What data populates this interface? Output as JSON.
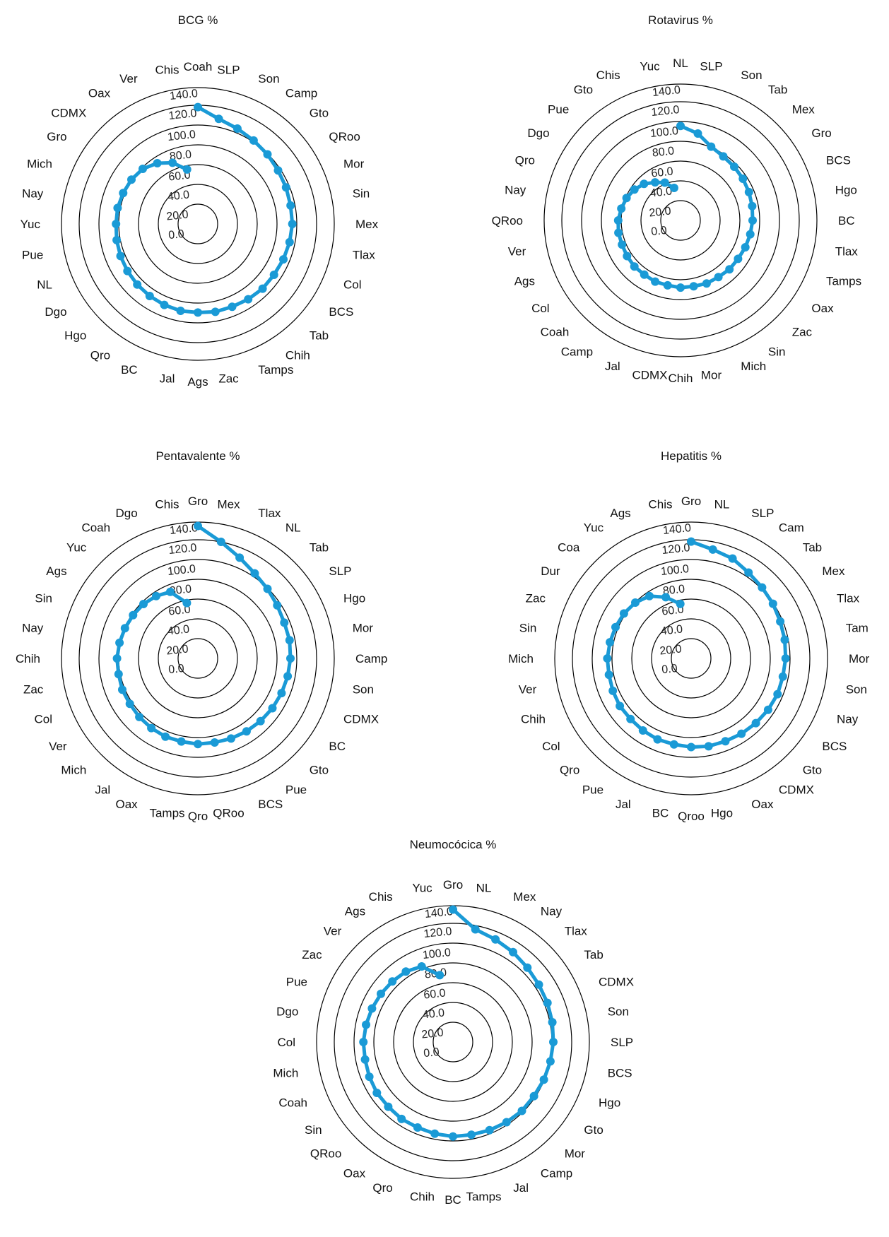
{
  "colors": {
    "series": "#1a9ad6",
    "axis": "#000000"
  },
  "chart_data": [
    {
      "type": "radar",
      "title": "BCG %",
      "rlim": [
        0,
        140
      ],
      "ticks": [
        "0.0",
        "20.0",
        "40.0",
        "60.0",
        "80.0",
        "100.0",
        "120.0",
        "140.0"
      ],
      "categories": [
        "Coah",
        "SLP",
        "Son",
        "Camp",
        "Gto",
        "QRoo",
        "Mor",
        "Sin",
        "Mex",
        "Tlax",
        "Col",
        "BCS",
        "Tab",
        "Chih",
        "Tamps",
        "Zac",
        "Ags",
        "Jal",
        "BC",
        "Qro",
        "Hgo",
        "Dgo",
        "NL",
        "Pue",
        "Yuc",
        "Nay",
        "Mich",
        "Gro",
        "CDMX",
        "Oax",
        "Ver",
        "Chis"
      ],
      "values": [
        120,
        110,
        106,
        103,
        101,
        99,
        98,
        97,
        97,
        96,
        95,
        94,
        94,
        93,
        92,
        92,
        91,
        91,
        90,
        89,
        88,
        87,
        86,
        85,
        84,
        84,
        83,
        82,
        80,
        75,
        68,
        57
      ]
    },
    {
      "type": "radar",
      "title": "Rotavirus %",
      "rlim": [
        0,
        140
      ],
      "ticks": [
        "0.0",
        "20.0",
        "40.0",
        "60.0",
        "80.0",
        "100.0",
        "120.0",
        "140.0"
      ],
      "categories": [
        "NL",
        "SLP",
        "Son",
        "Tab",
        "Mex",
        "Gro",
        "BCS",
        "Hgo",
        "BC",
        "Tlax",
        "Tamps",
        "Oax",
        "Zac",
        "Sin",
        "Mich",
        "Mor",
        "Chih",
        "CDMX",
        "Jal",
        "Camp",
        "Coah",
        "Col",
        "Ags",
        "Ver",
        "QRoo",
        "Nay",
        "Qro",
        "Dgo",
        "Pue",
        "Gto",
        "Chis",
        "Yuc"
      ],
      "values": [
        97,
        91,
        82,
        79,
        78,
        77,
        76,
        75,
        74,
        73,
        72,
        71,
        71,
        70,
        70,
        69,
        69,
        68,
        68,
        67,
        67,
        66,
        65,
        65,
        64,
        62,
        60,
        57,
        53,
        47,
        42,
        34
      ]
    },
    {
      "type": "radar",
      "title": "Pentavalente %",
      "rlim": [
        0,
        140
      ],
      "ticks": [
        "0.0",
        "20.0",
        "40.0",
        "60.0",
        "80.0",
        "100.0",
        "120.0",
        "140.0"
      ],
      "categories": [
        "Gro",
        "Mex",
        "Tlax",
        "NL",
        "Tab",
        "SLP",
        "Hgo",
        "Mor",
        "Camp",
        "Son",
        "CDMX",
        "BC",
        "Gto",
        "Pue",
        "BCS",
        "QRoo",
        "Qro",
        "Tamps",
        "Oax",
        "Jal",
        "Mich",
        "Ver",
        "Col",
        "Zac",
        "Chih",
        "Nay",
        "Sin",
        "Ags",
        "Yuc",
        "Coah",
        "Dgo",
        "Chis"
      ],
      "values": [
        136,
        122,
        112,
        105,
        101,
        98,
        96,
        96,
        95,
        94,
        93,
        92,
        91,
        90,
        89,
        88,
        88,
        87,
        87,
        86,
        85,
        84,
        84,
        83,
        83,
        82,
        81,
        80,
        79,
        77,
        74,
        58
      ]
    },
    {
      "type": "radar",
      "title": "Hepatitis %",
      "rlim": [
        0,
        140
      ],
      "ticks": [
        "0.0",
        "20.0",
        "40.0",
        "60.0",
        "80.0",
        "100.0",
        "120.0",
        "140.0"
      ],
      "categories": [
        "Gro",
        "NL",
        "SLP",
        "Cam",
        "Tab",
        "Mex",
        "Tlax",
        "Tam",
        "Mor",
        "Son",
        "Nay",
        "BCS",
        "Gto",
        "CDMX",
        "Oax",
        "Hgo",
        "Qroo",
        "BC",
        "Jal",
        "Pue",
        "Qro",
        "Col",
        "Chih",
        "Ver",
        "Mich",
        "Sin",
        "Zac",
        "Dur",
        "Coa",
        "Yuc",
        "Ags",
        "Chis"
      ],
      "values": [
        120,
        114,
        111,
        106,
        103,
        101,
        99,
        98,
        97,
        96,
        96,
        95,
        94,
        93,
        92,
        92,
        91,
        90,
        90,
        89,
        88,
        88,
        87,
        86,
        86,
        85,
        84,
        83,
        81,
        77,
        68,
        57
      ]
    },
    {
      "type": "radar",
      "title": "Neumocócica %",
      "rlim": [
        0,
        140
      ],
      "ticks": [
        "0.0",
        "20.0",
        "40.0",
        "60.0",
        "80.0",
        "100.0",
        "120.0",
        "140.0"
      ],
      "categories": [
        "Gro",
        "NL",
        "Mex",
        "Nay",
        "Tlax",
        "Tab",
        "CDMX",
        "Son",
        "SLP",
        "BCS",
        "Hgo",
        "Gto",
        "Mor",
        "Camp",
        "Jal",
        "Tamps",
        "BC",
        "Chih",
        "Qro",
        "Oax",
        "QRoo",
        "Sin",
        "Coah",
        "Mich",
        "Col",
        "Dgo",
        "Pue",
        "Zac",
        "Ver",
        "Ags",
        "Chis",
        "Yuc"
      ],
      "values": [
        136,
        118,
        114,
        111,
        108,
        106,
        105,
        104,
        103,
        102,
        101,
        100,
        100,
        99,
        98,
        97,
        97,
        96,
        95,
        95,
        94,
        94,
        93,
        92,
        92,
        91,
        90,
        89,
        88,
        87,
        84,
        70
      ]
    }
  ]
}
